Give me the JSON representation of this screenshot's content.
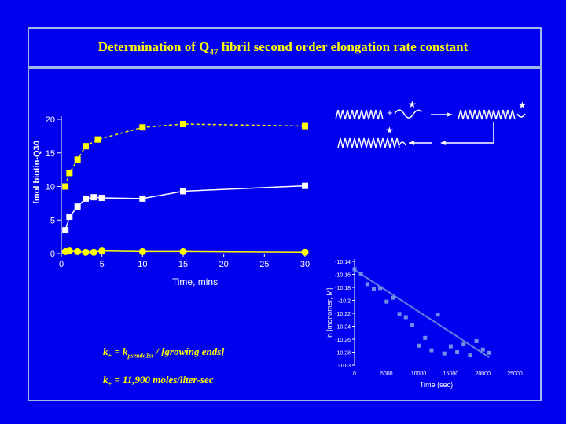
{
  "title": {
    "main": "Determination of Q",
    "sub": "47",
    "rest": " fibril second order elongation rate constant"
  },
  "equations": {
    "line1_lhs": "k",
    "line1_lhs_sub": "+",
    "line1_mid": " = k",
    "line1_mid_sub": "pseudo1st",
    "line1_rhs": " / [growing ends]",
    "line2_lhs": "k",
    "line2_lhs_sub": "+",
    "line2_rhs": " = 11,900 moles/liter-sec"
  },
  "colors": {
    "background": "#0000ee",
    "yellow": "#ffff00",
    "white": "#ffffff",
    "line": "#9fb7e8",
    "fit": "#5b7fe0"
  },
  "chart_data": [
    {
      "type": "line",
      "title": "",
      "xlabel": "Time, mins",
      "ylabel": "fmol biotin-Q30",
      "xlim": [
        0,
        30
      ],
      "ylim": [
        0,
        20
      ],
      "xticks": [
        0,
        5,
        10,
        15,
        20,
        25,
        30
      ],
      "yticks": [
        0,
        5,
        10,
        15,
        20
      ],
      "series": [
        {
          "color": "#ffff00",
          "marker": "square",
          "dashed": true,
          "x": [
            0.5,
            1,
            2,
            3,
            4.5,
            10,
            15,
            30
          ],
          "y": [
            10,
            12,
            14,
            16,
            17,
            18.8,
            19.3,
            19
          ]
        },
        {
          "color": "#ffffff",
          "marker": "square",
          "dashed": false,
          "x": [
            0.5,
            1,
            2,
            3,
            4,
            5,
            10,
            15,
            30
          ],
          "y": [
            3.5,
            5.5,
            7,
            8.2,
            8.4,
            8.3,
            8.2,
            9.3,
            10.1
          ]
        },
        {
          "color": "#ffff00",
          "marker": "circle",
          "dashed": false,
          "x": [
            0.5,
            1,
            2,
            3,
            4,
            5,
            10,
            15,
            30
          ],
          "y": [
            0.3,
            0.4,
            0.3,
            0.2,
            0.2,
            0.4,
            0.3,
            0.3,
            0.2
          ]
        }
      ]
    },
    {
      "type": "scatter",
      "title": "",
      "xlabel": "Time (sec)",
      "ylabel": "ln [monomer, M]",
      "xlim": [
        0,
        25000
      ],
      "ylim": [
        -10.3,
        -10.14
      ],
      "xticks": [
        0,
        5000,
        10000,
        15000,
        20000,
        25000
      ],
      "yticks": [
        -10.14,
        -10.16,
        -10.18,
        -10.2,
        -10.22,
        -10.24,
        -10.26,
        -10.28,
        -10.3
      ],
      "ytick_labels": [
        "-10.14",
        "-10.16",
        "-10.18",
        "-10.2",
        "-10.22",
        "-10.24",
        "-10.26",
        "-10.28",
        "-10.3"
      ],
      "points_x": [
        0,
        1000,
        2000,
        3000,
        4000,
        5000,
        6000,
        7000,
        8000,
        9000,
        10000,
        11000,
        12000,
        13000,
        14000,
        15000,
        16000,
        17000,
        18000,
        19000,
        20000,
        21000
      ],
      "points_y": [
        -10.152,
        -10.159,
        -10.175,
        -10.183,
        -10.181,
        -10.202,
        -10.196,
        -10.221,
        -10.226,
        -10.238,
        -10.27,
        -10.258,
        -10.277,
        -10.222,
        -10.282,
        -10.271,
        -10.28,
        -10.268,
        -10.285,
        -10.263,
        -10.276,
        -10.281
      ],
      "fit": {
        "x": [
          0,
          21000
        ],
        "y": [
          -10.153,
          -10.288
        ]
      }
    }
  ]
}
